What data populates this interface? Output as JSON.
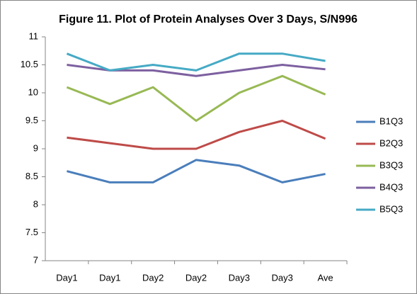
{
  "chart_data": {
    "type": "line",
    "title": "Figure 11. Plot of Protein Analyses Over 3 Days, S/N996",
    "categories": [
      "Day1",
      "Day1",
      "Day2",
      "Day2",
      "Day3",
      "Day3",
      "Ave"
    ],
    "series": [
      {
        "name": "B1Q3",
        "color": "#4a7ebb",
        "values": [
          8.6,
          8.4,
          8.4,
          8.8,
          8.7,
          8.4,
          8.55
        ]
      },
      {
        "name": "B2Q3",
        "color": "#be4b48",
        "values": [
          9.2,
          9.1,
          9.0,
          9.0,
          9.3,
          9.5,
          9.18
        ]
      },
      {
        "name": "B3Q3",
        "color": "#98b954",
        "values": [
          10.1,
          9.8,
          10.1,
          9.5,
          10.0,
          10.3,
          9.97
        ]
      },
      {
        "name": "B4Q3",
        "color": "#7d60a0",
        "values": [
          10.5,
          10.4,
          10.4,
          10.3,
          10.4,
          10.5,
          10.42
        ]
      },
      {
        "name": "B5Q3",
        "color": "#46aac5",
        "values": [
          10.7,
          10.4,
          10.5,
          10.4,
          10.7,
          10.7,
          10.57
        ]
      }
    ],
    "ylim": [
      7,
      11
    ],
    "yticks": [
      7,
      7.5,
      8,
      8.5,
      9,
      9.5,
      10,
      10.5,
      11
    ],
    "grid": false,
    "legend": "right"
  }
}
